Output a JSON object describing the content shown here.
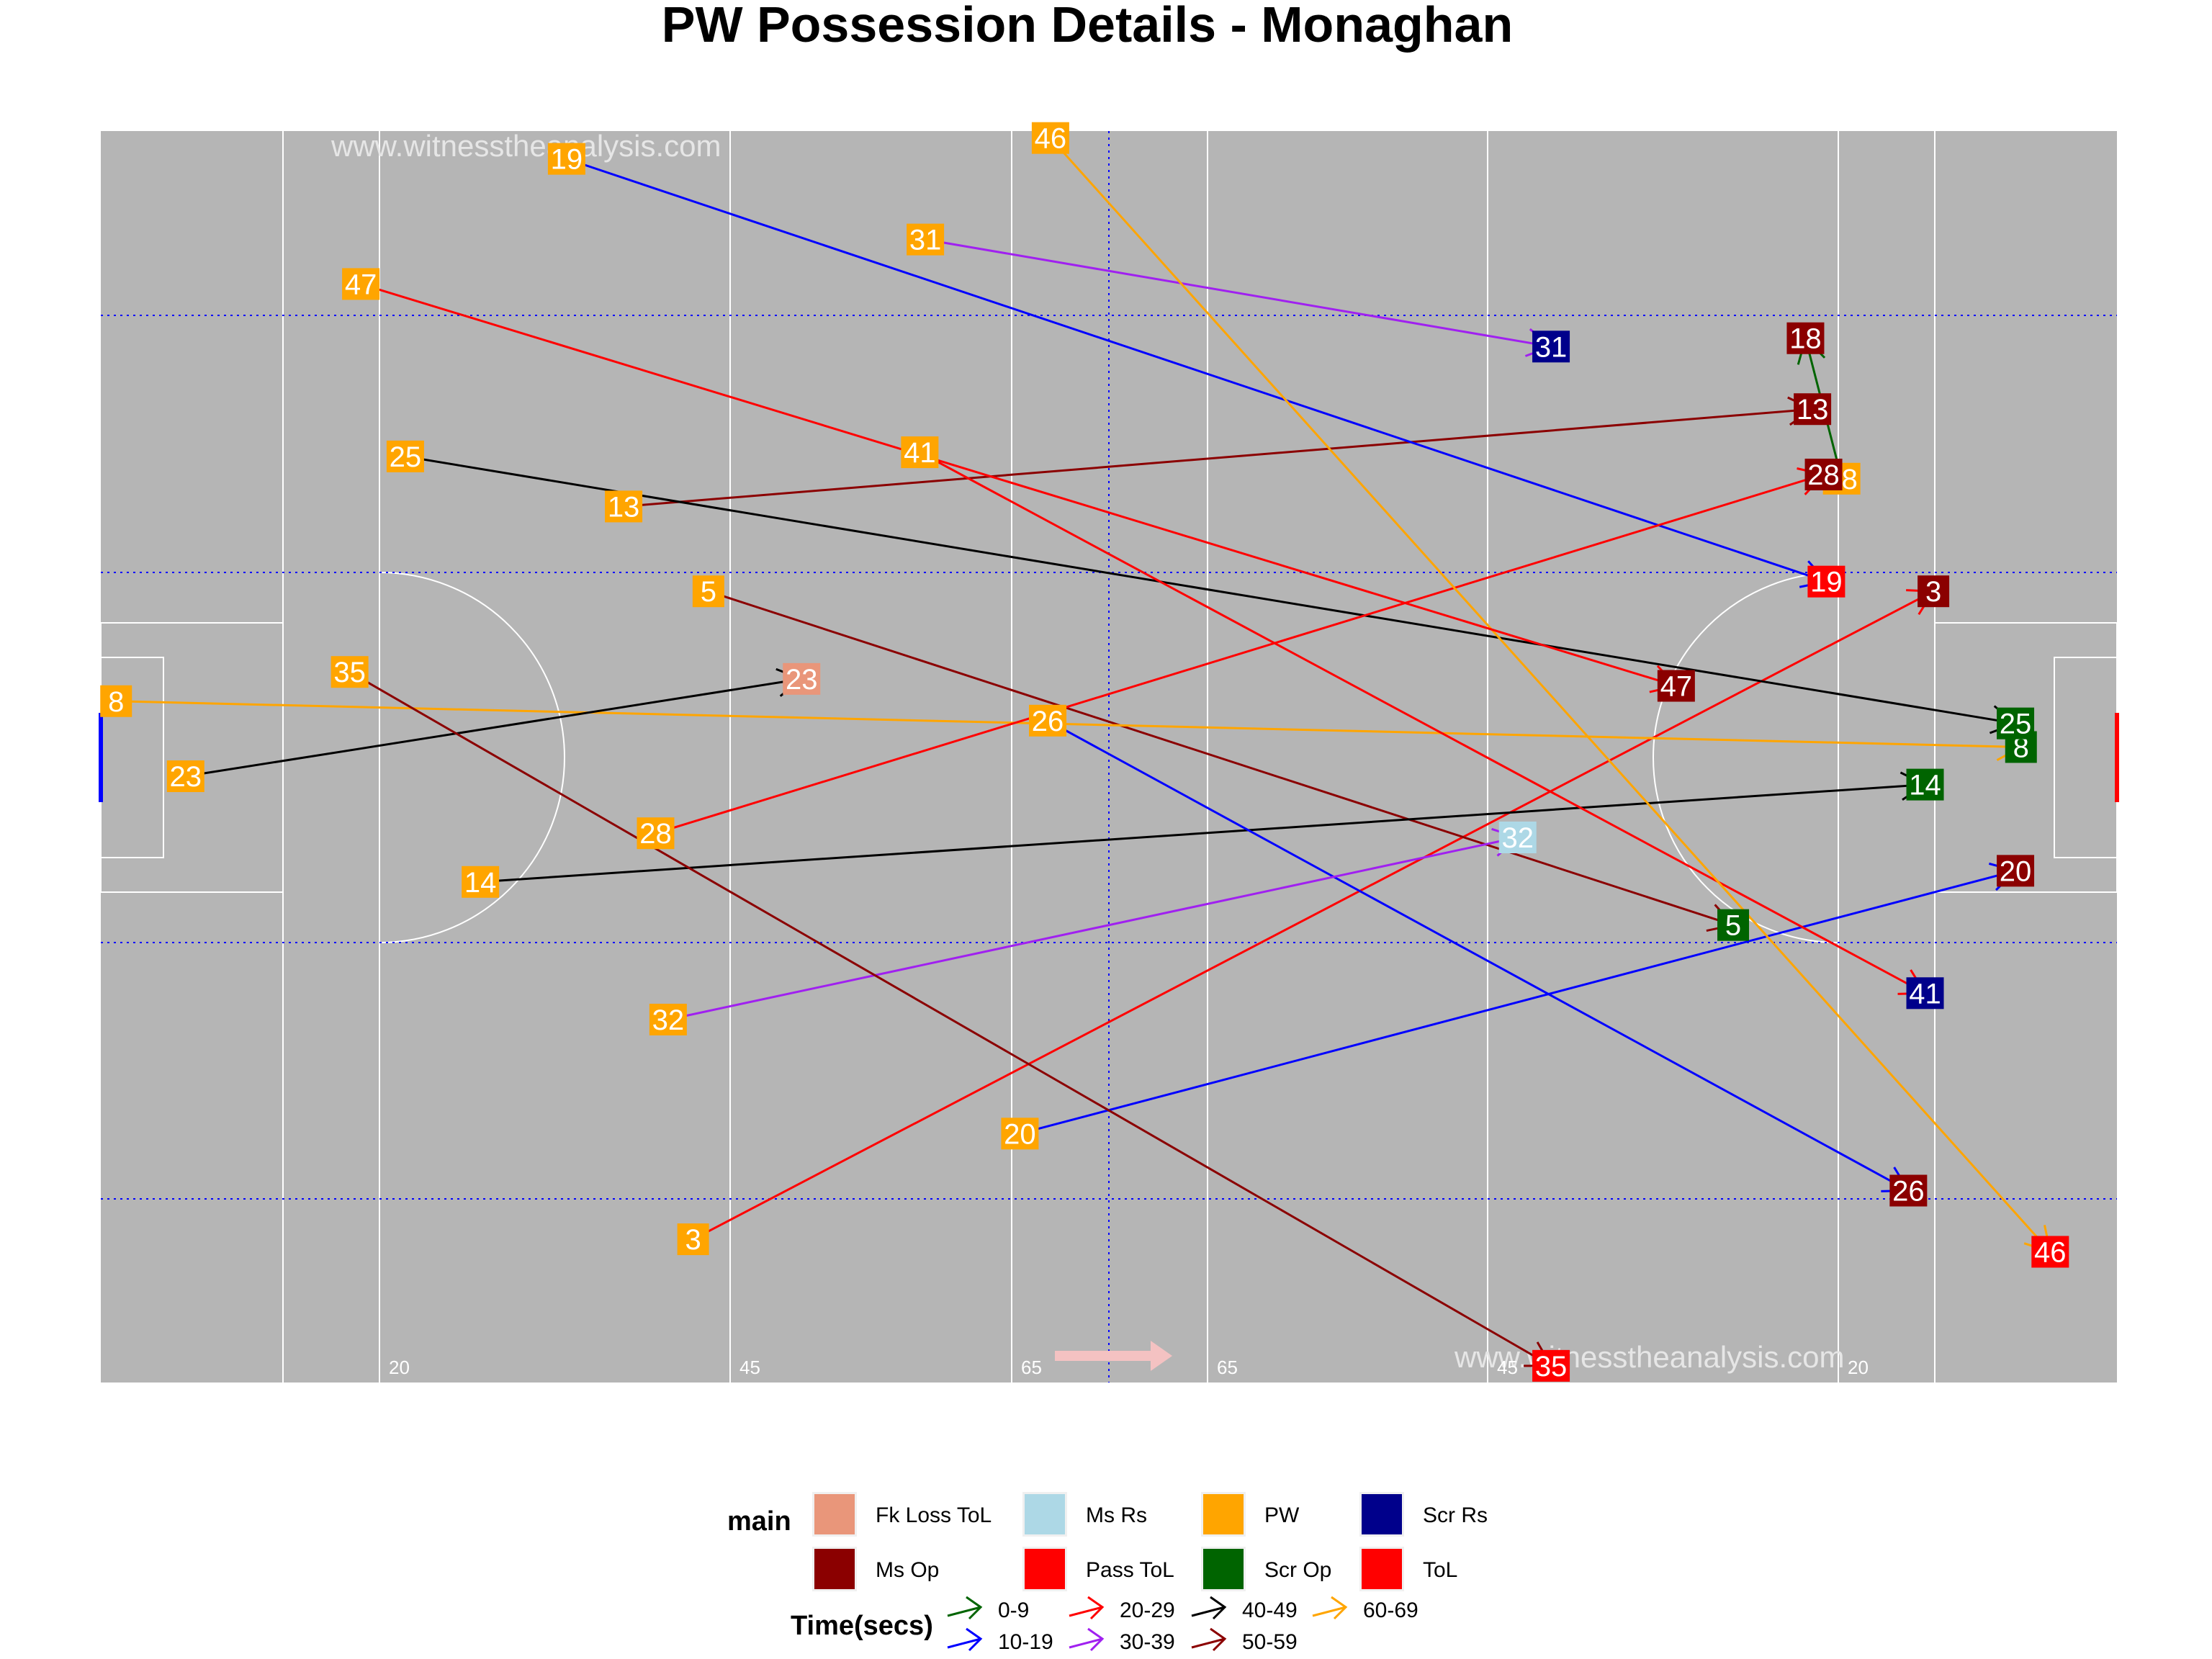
{
  "title": "PW Possession Details - Monaghan",
  "watermark": "www.witnesstheanalysis.com",
  "pitch_markers": [
    "20",
    "45",
    "65",
    "65",
    "45",
    "20"
  ],
  "colors": {
    "pitch": "#b5b5b5",
    "Fk Loss ToL": "#e9967a",
    "Ms Op": "#8b0000",
    "Ms Rs": "#add8e6",
    "Pass ToL": "#ff0000",
    "PW": "#ffa500",
    "Scr Op": "#006400",
    "Scr Rs": "#00008b",
    "ToL": "#ff0000",
    "0-9": "#006400",
    "10-19": "#0000ff",
    "20-29": "#ff0000",
    "30-39": "#a020f0",
    "40-49": "#000000",
    "50-59": "#8b0000",
    "60-69": "#ffa500"
  },
  "legend": {
    "main_title": "main",
    "main_items": [
      "Fk Loss ToL",
      "Ms Op",
      "Ms Rs",
      "Pass ToL",
      "PW",
      "Scr Op",
      "Scr Rs",
      "ToL"
    ],
    "time_title": "Time(secs)",
    "time_items": [
      "0-9",
      "10-19",
      "20-29",
      "30-39",
      "40-49",
      "50-59",
      "60-69"
    ]
  },
  "chart_data": {
    "type": "scatter",
    "xlim": [
      0,
      145
    ],
    "ylim": [
      0,
      90
    ],
    "possessions": [
      {
        "id": "3",
        "start": [
          42.6,
          10.3
        ],
        "end": [
          131.8,
          56.9
        ],
        "outcome": "Ms Op",
        "time": "20-29"
      },
      {
        "id": "5",
        "start": [
          43.7,
          56.9
        ],
        "end": [
          117.4,
          32.9
        ],
        "outcome": "Scr Op",
        "time": "50-59"
      },
      {
        "id": "8",
        "start": [
          1.1,
          49.0
        ],
        "end": [
          138.1,
          45.7
        ],
        "outcome": "Scr Op",
        "time": "60-69"
      },
      {
        "id": "13",
        "start": [
          37.6,
          63.0
        ],
        "end": [
          123.1,
          70.0
        ],
        "outcome": "Ms Op",
        "time": "50-59"
      },
      {
        "id": "14",
        "start": [
          27.3,
          36.0
        ],
        "end": [
          131.2,
          43.0
        ],
        "outcome": "Scr Op",
        "time": "40-49"
      },
      {
        "id": "18",
        "start": [
          125.2,
          65.0
        ],
        "end": [
          122.6,
          75.1
        ],
        "outcome": "Ms Op",
        "time": "0-9"
      },
      {
        "id": "19",
        "start": [
          33.5,
          88.0
        ],
        "end": [
          124.1,
          57.6
        ],
        "outcome": "ToL",
        "time": "10-19"
      },
      {
        "id": "20",
        "start": [
          66.1,
          17.9
        ],
        "end": [
          137.7,
          36.8
        ],
        "outcome": "Ms Op",
        "time": "10-19"
      },
      {
        "id": "23",
        "start": [
          6.1,
          43.6
        ],
        "end": [
          50.4,
          50.6
        ],
        "outcome": "Fk Loss ToL",
        "time": "40-49"
      },
      {
        "id": "25",
        "start": [
          21.9,
          66.6
        ],
        "end": [
          137.7,
          47.4
        ],
        "outcome": "Scr Op",
        "time": "40-49"
      },
      {
        "id": "26",
        "start": [
          68.1,
          47.6
        ],
        "end": [
          130.0,
          13.8
        ],
        "outcome": "Ms Op",
        "time": "10-19"
      },
      {
        "id": "28",
        "start": [
          39.9,
          39.5
        ],
        "end": [
          123.9,
          65.3
        ],
        "outcome": "Ms Op",
        "time": "20-29"
      },
      {
        "id": "31",
        "start": [
          59.3,
          82.2
        ],
        "end": [
          104.3,
          74.5
        ],
        "outcome": "Scr Rs",
        "time": "30-39"
      },
      {
        "id": "32",
        "start": [
          40.8,
          26.1
        ],
        "end": [
          101.9,
          39.2
        ],
        "outcome": "Ms Rs",
        "time": "30-39"
      },
      {
        "id": "35",
        "start": [
          17.9,
          51.1
        ],
        "end": [
          104.3,
          1.2
        ],
        "outcome": "ToL",
        "time": "50-59"
      },
      {
        "id": "41",
        "start": [
          58.9,
          66.9
        ],
        "end": [
          131.2,
          28.0
        ],
        "outcome": "Scr Rs",
        "time": "20-29"
      },
      {
        "id": "46",
        "start": [
          68.3,
          89.5
        ],
        "end": [
          140.2,
          9.4
        ],
        "outcome": "ToL",
        "time": "60-69"
      },
      {
        "id": "47",
        "start": [
          18.7,
          79.0
        ],
        "end": [
          113.3,
          50.1
        ],
        "outcome": "Ms Op",
        "time": "20-29"
      }
    ]
  }
}
